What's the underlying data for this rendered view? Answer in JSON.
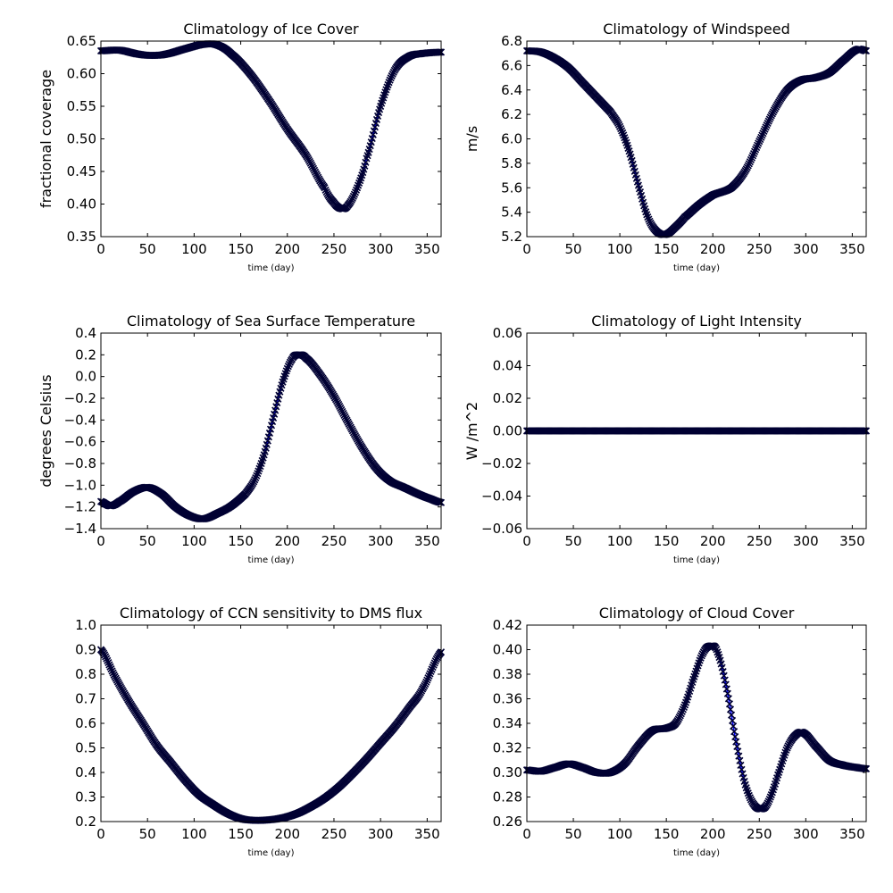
{
  "figure": {
    "background": "#ffffff",
    "line_color": "#0000ff",
    "marker_color": "#000033",
    "marker": "x"
  },
  "chart_data": [
    {
      "type": "line",
      "title": "Climatology of Ice Cover",
      "xlabel": "time (day)",
      "ylabel": "fractional coverage",
      "xlim": [
        0,
        365
      ],
      "ylim": [
        0.35,
        0.65
      ],
      "xticks": [
        "0",
        "50",
        "100",
        "150",
        "200",
        "250",
        "300",
        "350"
      ],
      "yticks": [
        "0.35",
        "0.40",
        "0.45",
        "0.50",
        "0.55",
        "0.60",
        "0.65"
      ],
      "series": [
        {
          "x": [
            0,
            20,
            40,
            55,
            70,
            90,
            110,
            125,
            140,
            160,
            180,
            200,
            220,
            240,
            250,
            258,
            265,
            275,
            285,
            300,
            315,
            330,
            345,
            365
          ],
          "y": [
            0.635,
            0.636,
            0.63,
            0.628,
            0.63,
            0.638,
            0.645,
            0.644,
            0.63,
            0.6,
            0.56,
            0.515,
            0.475,
            0.425,
            0.402,
            0.393,
            0.398,
            0.425,
            0.47,
            0.55,
            0.605,
            0.626,
            0.631,
            0.633
          ]
        }
      ]
    },
    {
      "type": "line",
      "title": "Climatology of Windspeed",
      "xlabel": "time (day)",
      "ylabel": "m/s",
      "xlim": [
        0,
        365
      ],
      "ylim": [
        5.2,
        6.8
      ],
      "xticks": [
        "0",
        "50",
        "100",
        "150",
        "200",
        "250",
        "300",
        "350"
      ],
      "yticks": [
        "5.2",
        "5.4",
        "5.6",
        "5.8",
        "6.0",
        "6.2",
        "6.4",
        "6.6",
        "6.8"
      ],
      "series": [
        {
          "x": [
            0,
            15,
            30,
            45,
            60,
            75,
            90,
            100,
            110,
            120,
            130,
            140,
            150,
            160,
            170,
            185,
            200,
            220,
            235,
            250,
            265,
            280,
            295,
            310,
            325,
            340,
            355,
            365
          ],
          "y": [
            6.72,
            6.71,
            6.66,
            6.58,
            6.46,
            6.34,
            6.22,
            6.1,
            5.9,
            5.62,
            5.36,
            5.24,
            5.22,
            5.28,
            5.36,
            5.46,
            5.54,
            5.6,
            5.74,
            5.98,
            6.22,
            6.4,
            6.48,
            6.5,
            6.54,
            6.64,
            6.73,
            6.72
          ]
        }
      ]
    },
    {
      "type": "line",
      "title": "Climatology of Sea Surface Temperature",
      "xlabel": "time (day)",
      "ylabel": "degrees Celsius",
      "xlim": [
        0,
        365
      ],
      "ylim": [
        -1.4,
        0.4
      ],
      "xticks": [
        "0",
        "50",
        "100",
        "150",
        "200",
        "250",
        "300",
        "350"
      ],
      "yticks": [
        "−1.4",
        "−1.2",
        "−1.0",
        "−0.8",
        "−0.6",
        "−0.4",
        "−0.2",
        "0.0",
        "0.2",
        "0.4"
      ],
      "series": [
        {
          "x": [
            0,
            10,
            20,
            35,
            50,
            65,
            80,
            95,
            110,
            125,
            140,
            155,
            165,
            175,
            185,
            195,
            205,
            212,
            220,
            235,
            250,
            265,
            280,
            295,
            310,
            325,
            340,
            355,
            365
          ],
          "y": [
            -1.15,
            -1.19,
            -1.15,
            -1.06,
            -1.02,
            -1.08,
            -1.2,
            -1.28,
            -1.31,
            -1.26,
            -1.19,
            -1.08,
            -0.95,
            -0.72,
            -0.38,
            -0.05,
            0.16,
            0.2,
            0.17,
            0.02,
            -0.18,
            -0.42,
            -0.65,
            -0.84,
            -0.96,
            -1.02,
            -1.08,
            -1.13,
            -1.16
          ]
        }
      ]
    },
    {
      "type": "line",
      "title": "Climatology of Light Intensity",
      "xlabel": "time (day)",
      "ylabel": "W /m^2",
      "xlim": [
        0,
        365
      ],
      "ylim": [
        -0.06,
        0.06
      ],
      "xticks": [
        "0",
        "50",
        "100",
        "150",
        "200",
        "250",
        "300",
        "350"
      ],
      "yticks": [
        "−0.06",
        "−0.04",
        "−0.02",
        "0.00",
        "0.02",
        "0.04",
        "0.06"
      ],
      "series": [
        {
          "x": [
            0,
            365
          ],
          "y": [
            0.0,
            0.0
          ]
        }
      ]
    },
    {
      "type": "line",
      "title": "Climatology of CCN sensitivity to DMS flux",
      "xlabel": "time (day)",
      "ylabel": "",
      "xlim": [
        0,
        365
      ],
      "ylim": [
        0.2,
        1.0
      ],
      "xticks": [
        "0",
        "50",
        "100",
        "150",
        "200",
        "250",
        "300",
        "350"
      ],
      "yticks": [
        "0.2",
        "0.3",
        "0.4",
        "0.5",
        "0.6",
        "0.7",
        "0.8",
        "0.9",
        "1.0"
      ],
      "series": [
        {
          "x": [
            0,
            15,
            30,
            45,
            60,
            75,
            90,
            105,
            120,
            135,
            150,
            165,
            180,
            195,
            210,
            225,
            240,
            255,
            270,
            285,
            300,
            315,
            330,
            345,
            365
          ],
          "y": [
            0.9,
            0.79,
            0.69,
            0.6,
            0.51,
            0.44,
            0.37,
            0.31,
            0.27,
            0.235,
            0.212,
            0.205,
            0.207,
            0.215,
            0.232,
            0.26,
            0.295,
            0.34,
            0.395,
            0.455,
            0.52,
            0.585,
            0.66,
            0.74,
            0.89
          ]
        }
      ]
    },
    {
      "type": "line",
      "title": "Climatology of Cloud Cover",
      "xlabel": "time (day)",
      "ylabel": "",
      "xlim": [
        0,
        365
      ],
      "ylim": [
        0.26,
        0.42
      ],
      "xticks": [
        "0",
        "50",
        "100",
        "150",
        "200",
        "250",
        "300",
        "350"
      ],
      "yticks": [
        "0.26",
        "0.28",
        "0.30",
        "0.32",
        "0.34",
        "0.36",
        "0.38",
        "0.40",
        "0.42"
      ],
      "series": [
        {
          "x": [
            0,
            15,
            30,
            45,
            60,
            75,
            90,
            105,
            120,
            135,
            150,
            160,
            170,
            180,
            190,
            198,
            205,
            215,
            225,
            235,
            245,
            255,
            262,
            270,
            280,
            290,
            298,
            310,
            325,
            340,
            355,
            365
          ],
          "y": [
            0.302,
            0.301,
            0.304,
            0.307,
            0.304,
            0.3,
            0.3,
            0.307,
            0.322,
            0.334,
            0.336,
            0.34,
            0.355,
            0.378,
            0.398,
            0.403,
            0.398,
            0.368,
            0.325,
            0.29,
            0.273,
            0.271,
            0.28,
            0.298,
            0.32,
            0.331,
            0.332,
            0.322,
            0.31,
            0.306,
            0.304,
            0.303
          ]
        }
      ]
    }
  ]
}
